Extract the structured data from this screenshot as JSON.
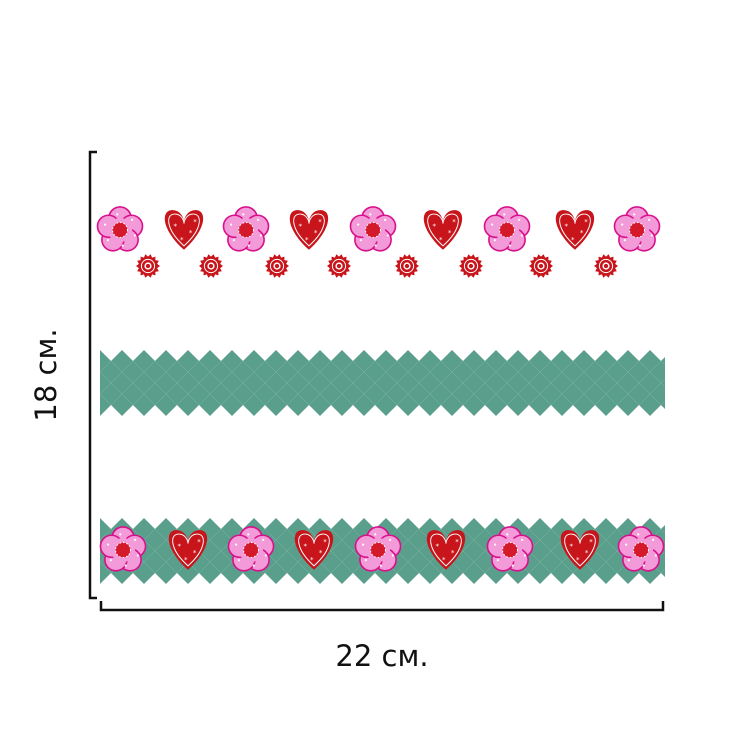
{
  "dimensions": {
    "height_label": "18 см.",
    "width_label": "22 см."
  },
  "pattern": {
    "top_row_motifs": [
      "flower-icon",
      "heart-icon",
      "flower-icon",
      "heart-icon",
      "flower-icon",
      "heart-icon",
      "flower-icon",
      "heart-icon",
      "flower-icon"
    ],
    "small_row_motifs": [
      "small-flower-icon",
      "small-flower-icon",
      "small-flower-icon",
      "small-flower-icon",
      "small-flower-icon",
      "small-flower-icon",
      "small-flower-icon",
      "small-flower-icon"
    ],
    "bottom_row_motifs": [
      "flower-icon",
      "heart-icon",
      "flower-icon",
      "heart-icon",
      "flower-icon",
      "heart-icon",
      "flower-icon",
      "heart-icon",
      "flower-icon"
    ]
  },
  "colors": {
    "checker": "#5a9e8c",
    "heart": "#c8151b",
    "heart_stitch": "#ffffff",
    "flower_petal": "#f39ad8",
    "flower_outline": "#d8108a",
    "flower_center": "#d41a2a",
    "small_flower": "#c8151b",
    "bracket": "#111111"
  }
}
